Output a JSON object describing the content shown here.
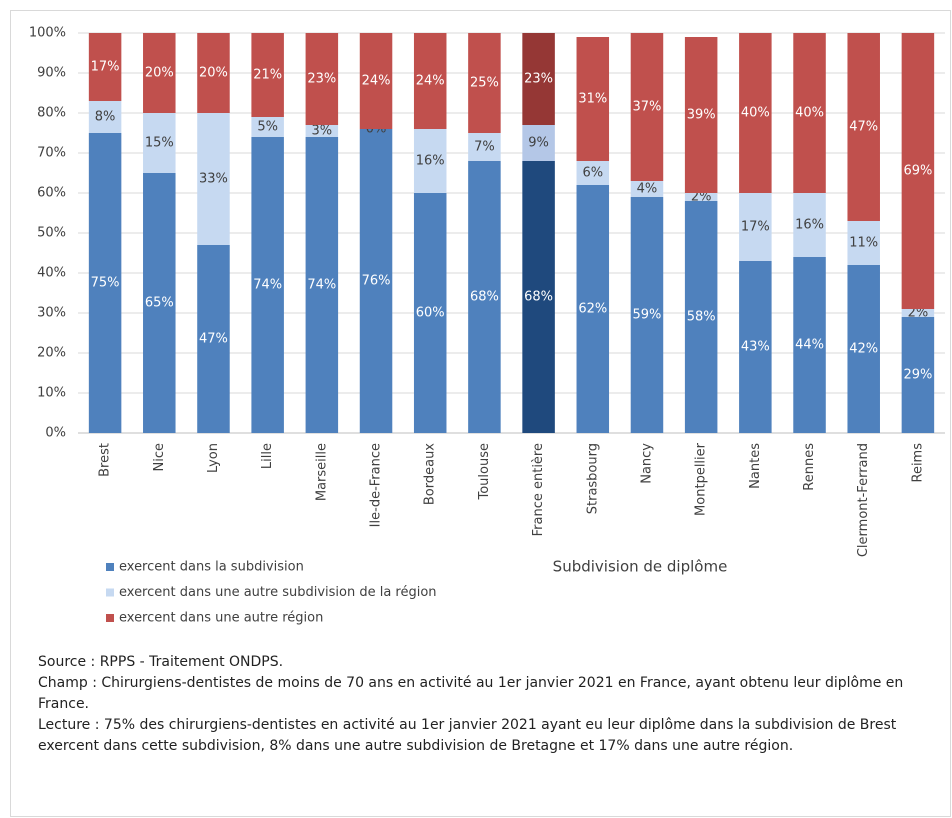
{
  "chart_data": {
    "type": "stacked_bar",
    "x_label": "Subdivision de diplôme",
    "categories": [
      "Brest",
      "Nice",
      "Lyon",
      "Lille",
      "Marseille",
      "Ile-de-France",
      "Bordeaux",
      "Toulouse",
      "France entière",
      "Strasbourg",
      "Nancy",
      "Montpellier",
      "Nantes",
      "Rennes",
      "Clermont-Ferrand",
      "Reims"
    ],
    "ylim": [
      0,
      100
    ],
    "yticks": [
      {
        "value": 0,
        "label": "0%"
      },
      {
        "value": 10,
        "label": "10%"
      },
      {
        "value": 20,
        "label": "20%"
      },
      {
        "value": 30,
        "label": "30%"
      },
      {
        "value": 40,
        "label": "40%"
      },
      {
        "value": 50,
        "label": "50%"
      },
      {
        "value": 60,
        "label": "60%"
      },
      {
        "value": 70,
        "label": "70%"
      },
      {
        "value": 80,
        "label": "80%"
      },
      {
        "value": 90,
        "label": "90%"
      },
      {
        "value": 100,
        "label": "100%"
      }
    ],
    "grid": true,
    "legend": "bottom-left",
    "series": [
      {
        "name": "exercent dans la subdivision",
        "color": "#4f81bd",
        "label_color": "#ffffff",
        "colors": [
          "#4f81bd",
          "#4f81bd",
          "#4f81bd",
          "#4f81bd",
          "#4f81bd",
          "#4f81bd",
          "#4f81bd",
          "#4f81bd",
          "#1f497d",
          "#4f81bd",
          "#4f81bd",
          "#4f81bd",
          "#4f81bd",
          "#4f81bd",
          "#4f81bd",
          "#4f81bd"
        ],
        "values": [
          75,
          65,
          47,
          74,
          74,
          76,
          60,
          68,
          68,
          62,
          59,
          58,
          43,
          44,
          42,
          29
        ],
        "value_labels": [
          "75%",
          "65%",
          "47%",
          "74%",
          "74%",
          "76%",
          "60%",
          "68%",
          "68%",
          "62%",
          "59%",
          "58%",
          "43%",
          "44%",
          "42%",
          "29%"
        ]
      },
      {
        "name": "exercent dans une autre subdivision de la région",
        "color": "#c6d9f1",
        "label_color": "#404040",
        "colors": [
          "#c6d9f1",
          "#c6d9f1",
          "#c6d9f1",
          "#c6d9f1",
          "#c6d9f1",
          "#c6d9f1",
          "#c6d9f1",
          "#c6d9f1",
          "#b4c7e7",
          "#c6d9f1",
          "#c6d9f1",
          "#c6d9f1",
          "#c6d9f1",
          "#c6d9f1",
          "#c6d9f1",
          "#c6d9f1"
        ],
        "values": [
          8,
          15,
          33,
          5,
          3,
          0,
          16,
          7,
          9,
          6,
          4,
          2,
          17,
          16,
          11,
          2
        ],
        "value_labels": [
          "8%",
          "15%",
          "33%",
          "5%",
          "3%",
          "0%",
          "16%",
          "7%",
          "9%",
          "6%",
          "4%",
          "2%",
          "17%",
          "16%",
          "11%",
          "2%"
        ]
      },
      {
        "name": "exercent dans une autre région",
        "color": "#c0504d",
        "label_color": "#ffffff",
        "colors": [
          "#c0504d",
          "#c0504d",
          "#c0504d",
          "#c0504d",
          "#c0504d",
          "#c0504d",
          "#c0504d",
          "#c0504d",
          "#953735",
          "#c0504d",
          "#c0504d",
          "#c0504d",
          "#c0504d",
          "#c0504d",
          "#c0504d",
          "#c0504d"
        ],
        "values": [
          17,
          20,
          20,
          21,
          23,
          24,
          24,
          25,
          23,
          31,
          37,
          39,
          40,
          40,
          47,
          69
        ],
        "value_labels": [
          "17%",
          "20%",
          "20%",
          "21%",
          "23%",
          "24%",
          "24%",
          "25%",
          "23%",
          "31%",
          "37%",
          "39%",
          "40%",
          "40%",
          "47%",
          "69%"
        ]
      }
    ],
    "notes": [
      "Source : RPPS - Traitement ONDPS.",
      "Champ : Chirurgiens-dentistes de moins de 70 ans en activité au 1er janvier 2021 en France, ayant obtenu leur diplôme en France.",
      "Lecture : 75% des chirurgiens-dentistes en activité au 1er janvier 2021 ayant eu leur diplôme dans la subdivision de Brest exercent dans cette subdivision, 8% dans une autre subdivision de Bretagne et 17% dans une autre région."
    ]
  }
}
